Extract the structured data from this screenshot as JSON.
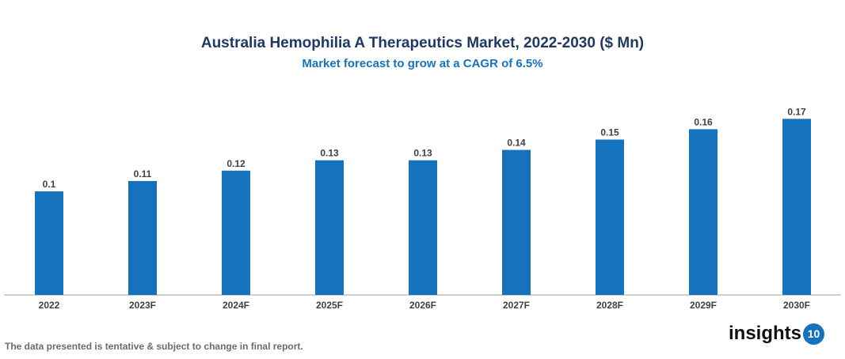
{
  "chart_data": {
    "type": "bar",
    "title": "Australia Hemophilia A Therapeutics Market, 2022-2030 ($ Mn)",
    "subtitle": "Market forecast to grow at a CAGR of 6.5%",
    "categories": [
      "2022",
      "2023F",
      "2024F",
      "2025F",
      "2026F",
      "2027F",
      "2028F",
      "2029F",
      "2030F"
    ],
    "values": [
      0.1,
      0.11,
      0.12,
      0.13,
      0.13,
      0.14,
      0.15,
      0.16,
      0.17
    ],
    "xlabel": "",
    "ylabel": "",
    "ylim": [
      0,
      0.19
    ],
    "grid": false,
    "bar_color": "#1573be"
  },
  "footnote": "The data presented is tentative & subject to change in final report.",
  "logo": {
    "text": "insights",
    "badge": "10"
  }
}
